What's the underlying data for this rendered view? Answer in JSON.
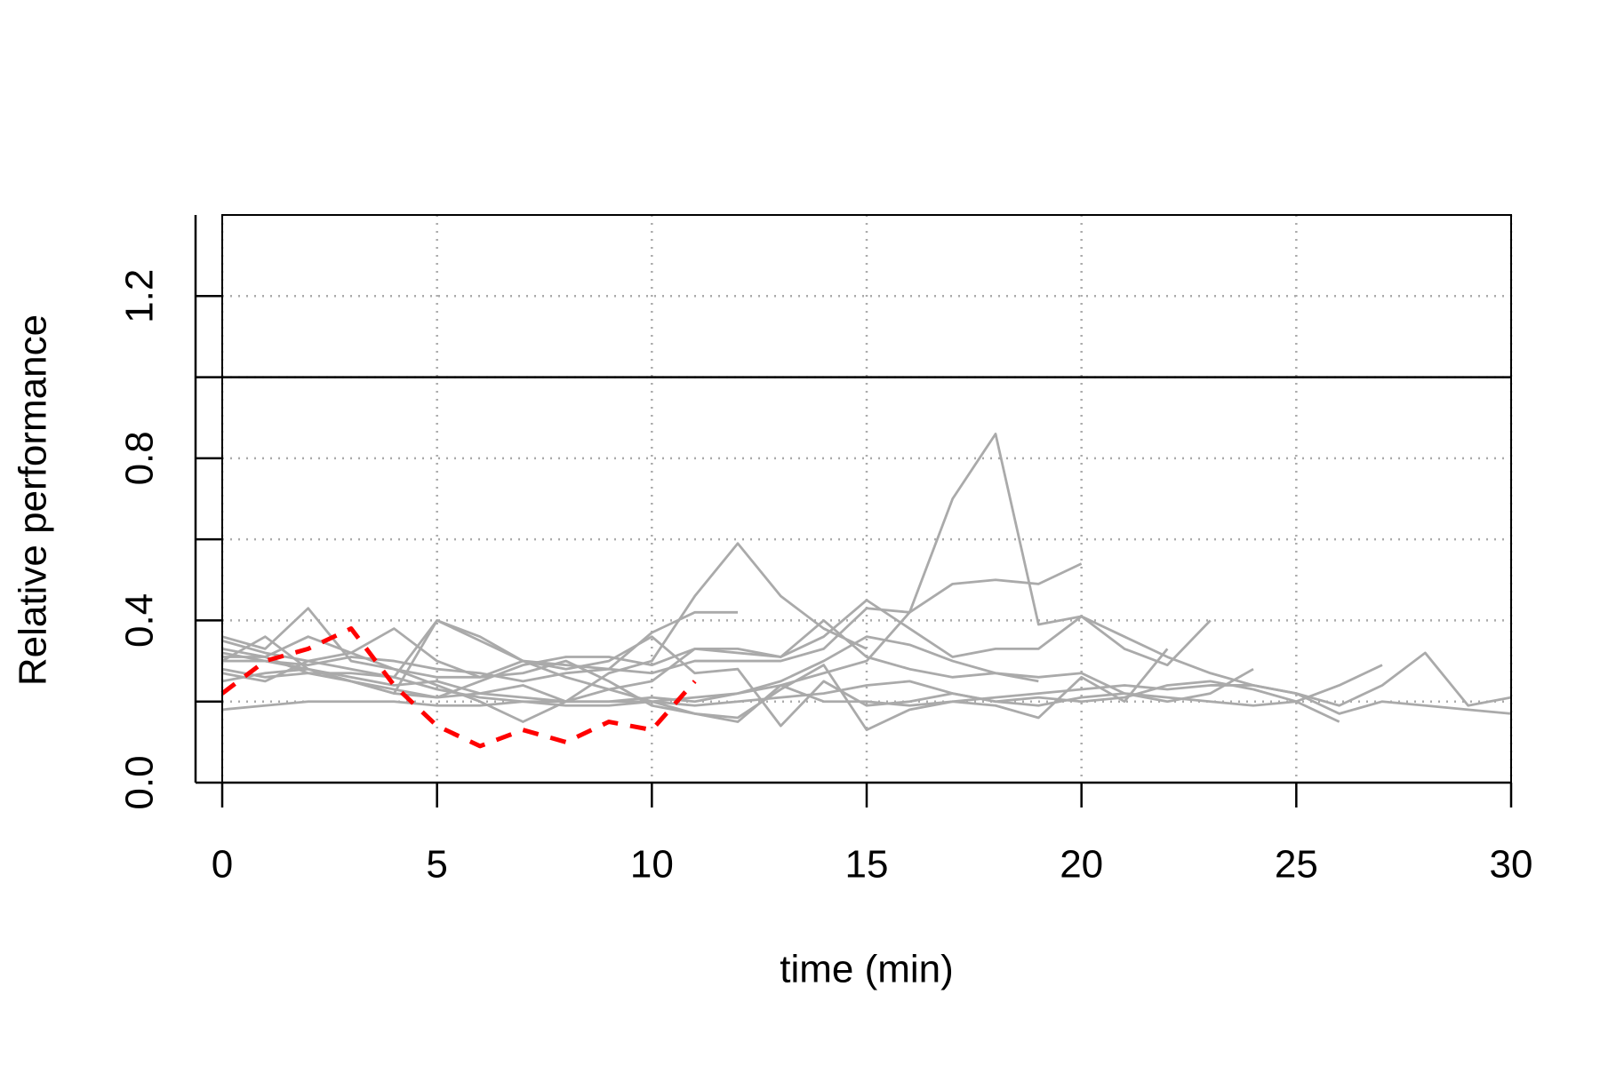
{
  "chart_data": {
    "type": "line",
    "xlabel": "time (min)",
    "ylabel": "Relative performance",
    "x": [
      0,
      1,
      2,
      3,
      4,
      5,
      6,
      7,
      8,
      9,
      10,
      11,
      12,
      13,
      14,
      15,
      16,
      17,
      18,
      19,
      20,
      21,
      22,
      23,
      24,
      25,
      26,
      27,
      28,
      29,
      30
    ],
    "xlim": [
      0,
      30
    ],
    "xticks": [
      0,
      5,
      10,
      15,
      20,
      25,
      30
    ],
    "ylim": [
      0,
      1.4
    ],
    "yticks": [
      {
        "value": 0,
        "label": "0.0"
      },
      0.4,
      0.8,
      1.2
    ],
    "y_minor_ticks": [
      0.2,
      0.6,
      1.0
    ],
    "grid_y": [
      0.2,
      0.4,
      0.6,
      0.8,
      1.0,
      1.2
    ],
    "grid": true,
    "hline": 1.0,
    "hline_color": "#000000",
    "series": [
      {
        "color": "#aaaaaa",
        "values": [
          0.25,
          0.27,
          0.28,
          0.26,
          0.24,
          0.25,
          0.22,
          0.21,
          0.2,
          0.2,
          0.21,
          0.2,
          0.22,
          0.24,
          0.27,
          0.3,
          0.42,
          0.7,
          0.86,
          0.39,
          0.41,
          0.36,
          0.31,
          0.27,
          0.24,
          0.22,
          0.19,
          0.24,
          0.32,
          0.19,
          0.21
        ]
      },
      {
        "color": "#aaaaaa",
        "values": [
          0.33,
          0.31,
          0.27,
          0.25,
          0.23,
          0.21,
          0.22,
          0.24,
          0.2,
          0.27,
          0.3,
          0.46,
          0.59,
          0.46,
          0.38,
          0.33,
          null,
          null,
          null,
          null,
          null,
          null,
          null,
          null,
          null,
          null,
          null,
          null,
          null,
          null,
          null
        ]
      },
      {
        "color": "#aaaaaa",
        "values": [
          0.3,
          0.3,
          0.29,
          0.31,
          0.3,
          0.28,
          0.27,
          0.25,
          0.27,
          0.28,
          0.27,
          0.3,
          0.3,
          0.3,
          0.33,
          0.43,
          0.42,
          0.49,
          0.5,
          0.49,
          0.54,
          null,
          null,
          null,
          null,
          null,
          null,
          null,
          null,
          null,
          null
        ]
      },
      {
        "color": "#aaaaaa",
        "values": [
          0.35,
          0.32,
          0.3,
          0.28,
          0.26,
          0.4,
          0.35,
          0.3,
          0.26,
          0.23,
          0.25,
          0.33,
          0.33,
          0.31,
          0.36,
          0.45,
          0.38,
          0.31,
          0.33,
          0.33,
          0.41,
          0.33,
          0.29,
          0.4,
          null,
          null,
          null,
          null,
          null,
          null,
          null
        ]
      },
      {
        "color": "#aaaaaa",
        "values": [
          0.18,
          0.19,
          0.2,
          0.2,
          0.2,
          0.19,
          0.19,
          0.2,
          0.2,
          0.2,
          0.2,
          0.19,
          0.2,
          0.21,
          0.22,
          0.24,
          0.25,
          0.22,
          0.2,
          0.19,
          0.21,
          0.22,
          0.21,
          0.2,
          0.19,
          0.2,
          0.24,
          0.29,
          null,
          null,
          null
        ]
      },
      {
        "color": "#aaaaaa",
        "values": [
          0.36,
          0.33,
          0.43,
          0.3,
          0.28,
          0.26,
          0.26,
          0.3,
          0.29,
          0.28,
          0.37,
          0.42,
          0.42,
          null,
          null,
          null,
          null,
          null,
          null,
          null,
          null,
          null,
          null,
          null,
          null,
          null,
          null,
          null,
          null,
          null,
          null
        ]
      },
      {
        "color": "#aaaaaa",
        "values": [
          0.27,
          0.25,
          0.3,
          0.32,
          0.28,
          0.24,
          0.2,
          0.15,
          0.2,
          0.23,
          0.2,
          0.17,
          0.15,
          0.24,
          0.2,
          0.2,
          0.19,
          0.2,
          0.21,
          0.22,
          0.23,
          0.24,
          0.23,
          0.24,
          0.24,
          0.22,
          0.17,
          0.2,
          0.19,
          0.18,
          0.17
        ]
      },
      {
        "color": "#aaaaaa",
        "values": [
          0.31,
          0.31,
          0.36,
          0.32,
          0.38,
          0.3,
          0.26,
          0.27,
          0.3,
          0.25,
          0.19,
          0.17,
          0.16,
          0.23,
          0.29,
          0.13,
          0.18,
          0.2,
          0.19,
          0.16,
          0.26,
          0.2,
          0.33,
          null,
          null,
          null,
          null,
          null,
          null,
          null,
          null
        ]
      },
      {
        "color": "#aaaaaa",
        "values": [
          0.3,
          0.36,
          0.28,
          0.25,
          0.22,
          0.21,
          0.25,
          0.29,
          0.31,
          0.31,
          0.29,
          0.33,
          0.32,
          0.31,
          0.4,
          0.31,
          0.28,
          0.26,
          0.27,
          0.25,
          null,
          null,
          null,
          null,
          null,
          null,
          null,
          null,
          null,
          null,
          null
        ]
      },
      {
        "color": "#aaaaaa",
        "values": [
          0.28,
          0.26,
          0.27,
          0.27,
          0.26,
          0.23,
          0.21,
          0.2,
          0.19,
          0.19,
          0.2,
          0.21,
          0.22,
          0.25,
          0.3,
          0.36,
          0.34,
          0.3,
          0.27,
          0.26,
          0.27,
          0.22,
          0.2,
          0.22,
          0.28,
          null,
          null,
          null,
          null,
          null,
          null
        ]
      },
      {
        "color": "#aaaaaa",
        "values": [
          0.32,
          0.3,
          0.28,
          0.25,
          0.22,
          0.4,
          0.36,
          0.3,
          0.28,
          0.3,
          0.36,
          0.27,
          0.28,
          0.14,
          0.25,
          0.19,
          0.2,
          0.22,
          0.2,
          0.21,
          0.2,
          0.21,
          0.24,
          0.25,
          0.23,
          0.2,
          0.15,
          null,
          null,
          null,
          null
        ]
      },
      {
        "color": "#ff0000",
        "dashed": true,
        "values": [
          0.22,
          0.3,
          0.33,
          0.38,
          0.24,
          0.14,
          0.09,
          0.13,
          0.1,
          0.15,
          0.13,
          0.25,
          null,
          null,
          null,
          null,
          null,
          null,
          null,
          null,
          null,
          null,
          null,
          null,
          null,
          null,
          null,
          null,
          null,
          null,
          null
        ]
      }
    ]
  }
}
